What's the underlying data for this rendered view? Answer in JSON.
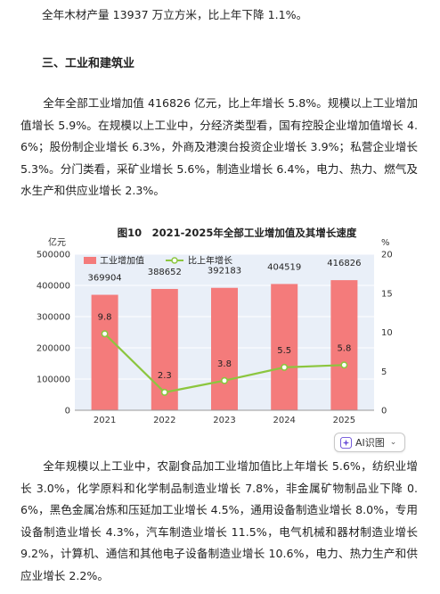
{
  "text": {
    "top_line": "全年木材产量 13937 万立方米，比上年下降 1.1%。",
    "section_heading": "三、工业和建筑业",
    "para_main": "全年全部工业增加值 416826 亿元，比上年增长 5.8%。规模以上工业增加值增长 5.9%。在规模以上工业中，分经济类型看，国有控股企业增加值增长 4.6%；股份制企业增长 6.3%，外商及港澳台投资企业增长 3.9%；私营企业增长 5.3%。分门类看，采矿业增长 5.6%，制造业增长 6.4%，电力、热力、燃气及水生产和供应业增长 2.3%。",
    "para_bottom": "全年规模以上工业中，农副食品加工业增加值比上年增长 5.6%，纺织业增长 3.0%，化学原料和化学制品制造业增长 7.8%，非金属矿物制品业下降 0.6%，黑色金属冶炼和压延加工业增长 4.5%，通用设备制造业增长 8.0%，专用设备制造业增长 4.3%，汽车制造业增长 11.5%，电气机械和器材制造业增长 9.2%，计算机、通信和其他电子设备制造业增长 10.6%，电力、热力生产和供应业增长 2.2%。"
  },
  "ai_button": {
    "label": "AI识图",
    "icon": "ai-sparkle-icon",
    "chevron": "chevron-down-icon"
  },
  "colors": {
    "bar": "#f47b7b",
    "line": "#8cc63f",
    "marker_fill": "#ffffff",
    "plot_bg": "#e9eff8",
    "grid": "#ffffff",
    "axis_text": "#333333"
  },
  "chart_data": {
    "type": "bar+line",
    "title": "图10　2021-2025年全部工业增加值及其增长速度",
    "left_axis_unit": "亿元",
    "right_axis_unit": "%",
    "categories": [
      "2021",
      "2022",
      "2023",
      "2024",
      "2025"
    ],
    "left_ylim": [
      0,
      500000
    ],
    "left_ticks": [
      0,
      100000,
      200000,
      300000,
      400000,
      500000
    ],
    "right_ylim": [
      0,
      20
    ],
    "right_ticks": [
      0,
      5,
      10,
      15,
      20
    ],
    "grid": true,
    "legend_position": "top-left",
    "series": [
      {
        "name": "工业增加值",
        "type": "bar",
        "axis": "left",
        "values": [
          369904,
          388652,
          392183,
          404519,
          416826
        ],
        "labels": [
          "369904",
          "388652",
          "392183",
          "404519",
          "416826"
        ]
      },
      {
        "name": "比上年增长",
        "type": "line",
        "axis": "right",
        "values": [
          9.8,
          2.3,
          3.8,
          5.5,
          5.8
        ],
        "labels": [
          "9.8",
          "2.3",
          "3.8",
          "5.5",
          "5.8"
        ]
      }
    ]
  }
}
